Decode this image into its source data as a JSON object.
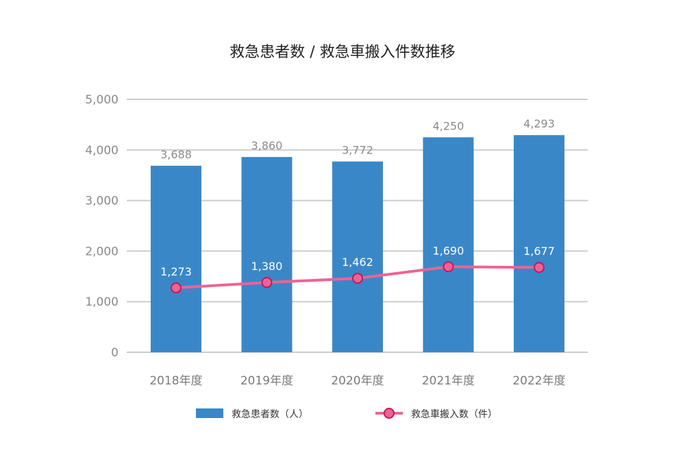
{
  "chart_data": {
    "type": "bar",
    "title": "救急患者数 / 救急車搬入件数推移",
    "categories": [
      "2018年度",
      "2019年度",
      "2020年度",
      "2021年度",
      "2022年度"
    ],
    "yticks": [
      "0",
      "1,000",
      "2,000",
      "3,000",
      "4,000",
      "5,000"
    ],
    "ylim": [
      0,
      5000
    ],
    "grid": true,
    "legend_position": "bottom",
    "series": [
      {
        "name": "救急患者数（人）",
        "kind": "bar",
        "color": "#3a87c8",
        "values": [
          3688,
          3860,
          3772,
          4250,
          4293
        ],
        "labels": [
          "3,688",
          "3,860",
          "3,772",
          "4,250",
          "4,293"
        ]
      },
      {
        "name": "救急車搬入数（件）",
        "kind": "line",
        "color": "#ec6494",
        "values": [
          1273,
          1380,
          1462,
          1690,
          1677
        ],
        "labels": [
          "1,273",
          "1,380",
          "1,462",
          "1,690",
          "1,677"
        ]
      }
    ]
  }
}
